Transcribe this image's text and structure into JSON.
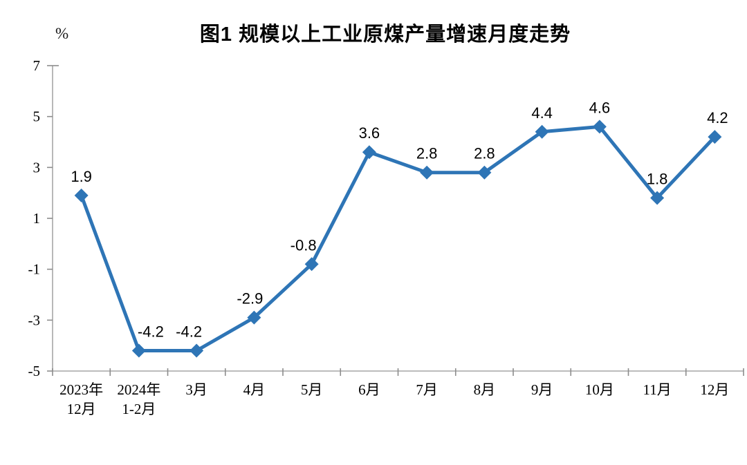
{
  "figure": {
    "title": "图1  规模以上工业原煤产量增速月度走势",
    "unit_label": "%"
  },
  "chart_data": {
    "type": "line",
    "title": "图1  规模以上工业原煤产量增速月度走势",
    "unit": "%",
    "categories": [
      "2023年12月",
      "2024年1-2月",
      "3月",
      "4月",
      "5月",
      "6月",
      "7月",
      "8月",
      "9月",
      "10月",
      "11月",
      "12月"
    ],
    "category_display_lines": [
      [
        "2023年",
        "12月"
      ],
      [
        "2024年",
        "1-2月"
      ],
      [
        "3月",
        ""
      ],
      [
        "4月",
        ""
      ],
      [
        "5月",
        ""
      ],
      [
        "6月",
        ""
      ],
      [
        "7月",
        ""
      ],
      [
        "8月",
        ""
      ],
      [
        "9月",
        ""
      ],
      [
        "10月",
        ""
      ],
      [
        "11月",
        ""
      ],
      [
        "12月",
        ""
      ]
    ],
    "values": [
      1.9,
      -4.2,
      -4.2,
      -2.9,
      -0.8,
      3.6,
      2.8,
      2.8,
      4.4,
      4.6,
      1.8,
      4.2
    ],
    "data_labels": [
      "1.9",
      "-4.2",
      "-4.2",
      "-2.9",
      "-0.8",
      "3.6",
      "2.8",
      "2.8",
      "4.4",
      "4.6",
      "1.8",
      "4.2"
    ],
    "label_dx": [
      0,
      17,
      -11,
      -6,
      -12,
      0,
      0,
      0,
      0,
      0,
      0,
      4
    ],
    "xlabel": "",
    "ylabel": "%",
    "ylim": [
      -5,
      7
    ],
    "yticks": [
      7,
      5,
      3,
      1,
      -1,
      -3,
      -5
    ],
    "grid": false,
    "legend": "none",
    "styles": {
      "line_color": "#2E75B6",
      "marker": "diamond",
      "axis_color": "#A6A6A6",
      "tick_color": "#8C8C8C",
      "label_color": "#000000",
      "background": "#FFFFFF"
    }
  }
}
